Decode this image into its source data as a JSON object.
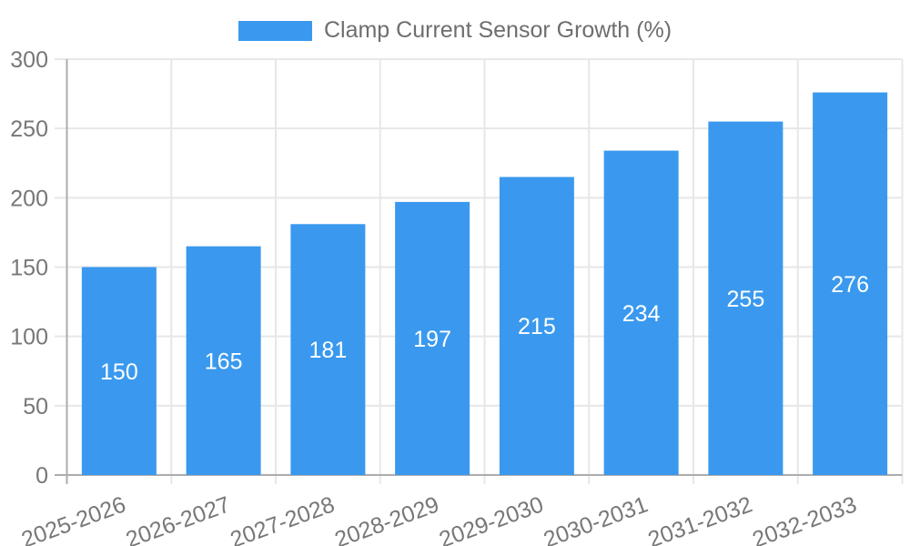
{
  "chart_data": {
    "type": "bar",
    "title": "Clamp Current Sensor Growth (%)",
    "categories": [
      "2025-2026",
      "2026-2027",
      "2027-2028",
      "2028-2029",
      "2029-2030",
      "2030-2031",
      "2031-2032",
      "2032-2033"
    ],
    "values": [
      150,
      165,
      181,
      197,
      215,
      234,
      255,
      276
    ],
    "xlabel": "",
    "ylabel": "",
    "ylim": [
      0,
      300
    ],
    "ytick_step": 50,
    "yticks": [
      0,
      50,
      100,
      150,
      200,
      250,
      300
    ],
    "grid": true,
    "legend_position": "top",
    "value_labels": "inside-center",
    "x_label_rotation_deg": -20,
    "colors": {
      "bar": "#3A99EE",
      "grid": "#E7E7E7",
      "axis": "#ACACAC",
      "tick_text": "#777777",
      "title_text": "#6E6E6E",
      "value_text": "#FFFFFF",
      "background": "#FFFFFF"
    }
  }
}
